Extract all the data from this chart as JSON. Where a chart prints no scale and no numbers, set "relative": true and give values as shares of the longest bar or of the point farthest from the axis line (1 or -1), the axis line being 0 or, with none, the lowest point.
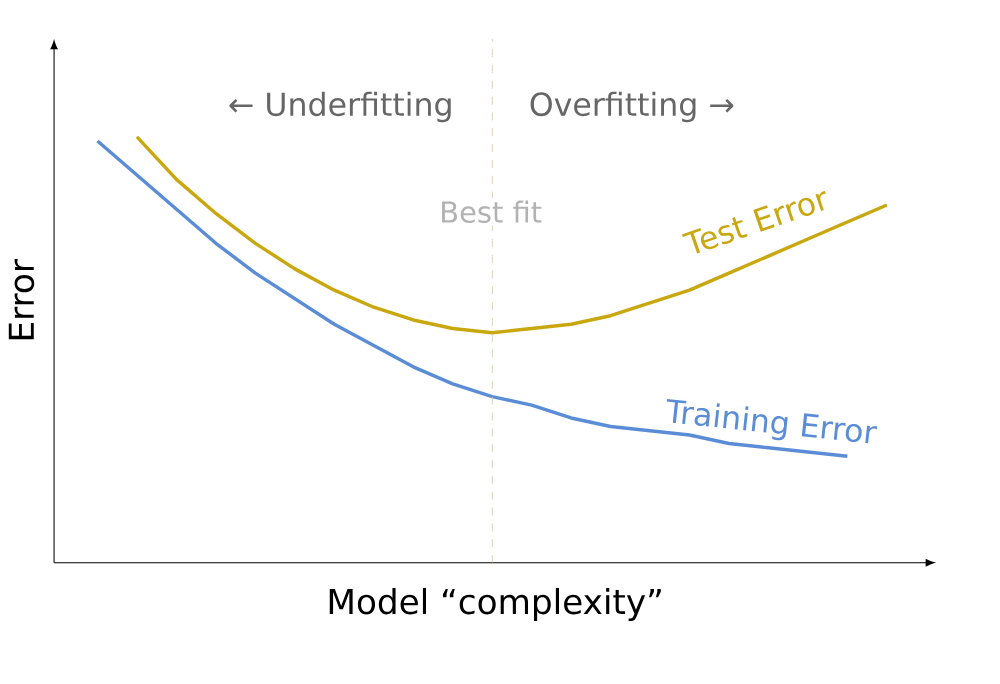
{
  "chart_data": {
    "type": "line",
    "relative": true,
    "xlabel": "Model “complexity”",
    "ylabel": "Error",
    "categories": [
      null,
      null,
      null,
      null,
      null,
      null,
      null,
      null,
      null,
      null,
      null,
      null,
      null,
      null,
      null,
      null,
      null,
      null,
      null,
      null,
      null
    ],
    "series": [
      {
        "name": "Test Error",
        "color": "#c9a70f",
        "values": [
          null,
          1.0,
          0.9,
          0.82,
          0.75,
          0.69,
          0.64,
          0.6,
          0.57,
          0.55,
          0.54,
          0.55,
          0.56,
          0.58,
          0.61,
          0.64,
          0.68,
          0.72,
          0.76,
          0.8,
          0.84
        ]
      },
      {
        "name": "Training Error",
        "color": "#5b8dd6",
        "values": [
          0.99,
          0.91,
          0.83,
          0.75,
          0.68,
          0.62,
          0.56,
          0.51,
          0.46,
          0.42,
          0.39,
          0.37,
          0.34,
          0.32,
          0.31,
          0.3,
          0.28,
          0.27,
          0.26,
          0.25,
          null
        ]
      }
    ],
    "annotations": [
      "← Underfitting",
      "Overfitting →",
      "Best fit"
    ],
    "legend": false
  }
}
